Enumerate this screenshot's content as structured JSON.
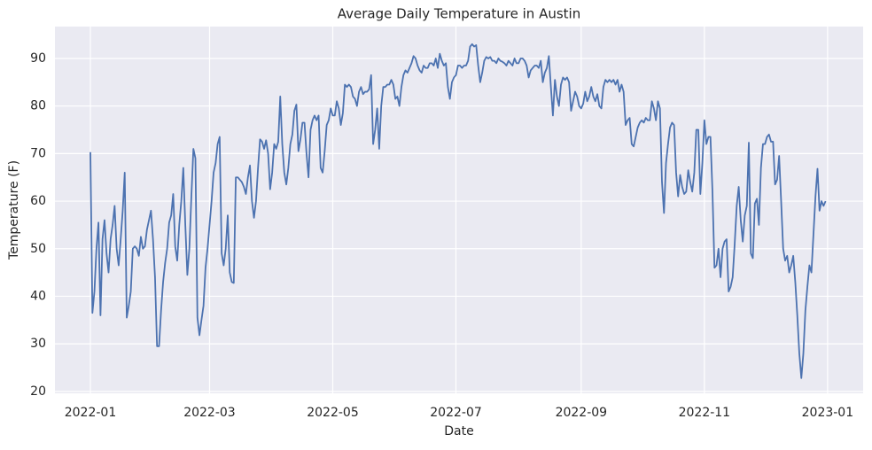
{
  "chart_data": {
    "type": "line",
    "title": "Average Daily Temperature in Austin",
    "xlabel": "Date",
    "ylabel": "Temperature (F)",
    "color": "#4c72b0",
    "grid": true,
    "values": [
      70.3,
      36.5,
      41,
      50,
      55.5,
      36,
      52,
      56,
      49,
      45,
      52,
      55,
      59,
      50,
      46.5,
      52,
      58,
      66,
      35.5,
      38,
      41,
      50,
      50.5,
      50,
      48.5,
      52.5,
      50,
      50.5,
      54,
      56,
      58,
      52,
      44,
      29.5,
      29.5,
      37,
      43,
      47,
      50,
      55.5,
      57,
      61.5,
      50.5,
      47.5,
      55,
      60,
      67,
      55,
      44.5,
      50,
      61,
      71,
      69,
      35.5,
      31.8,
      35,
      38,
      46,
      50,
      55,
      60,
      66,
      68,
      72,
      73.5,
      49,
      46.5,
      50,
      57,
      45,
      43,
      42.8,
      65,
      65,
      64.5,
      64,
      63,
      61.5,
      65,
      67.5,
      60,
      56.5,
      60,
      67,
      73,
      72.5,
      71,
      72.8,
      70,
      62.5,
      66,
      72,
      71,
      72.5,
      82,
      72,
      66,
      63.5,
      67,
      72,
      74,
      79,
      80.3,
      70.5,
      73,
      76.5,
      76.5,
      70,
      65,
      75,
      77,
      78,
      77,
      78,
      67,
      66,
      70.5,
      76,
      77,
      79.5,
      78,
      78,
      81,
      79.5,
      76,
      78.5,
      84.5,
      84,
      84.5,
      84,
      82,
      81.5,
      80,
      83,
      84,
      82.5,
      83,
      83,
      83.5,
      86.5,
      72,
      75,
      79.5,
      71,
      80,
      84,
      84,
      84.5,
      84.5,
      85.5,
      84.5,
      81.5,
      82,
      80,
      84,
      86.5,
      87.5,
      87,
      88,
      89,
      90.5,
      90,
      88.5,
      87.5,
      87,
      88.5,
      88,
      88,
      89,
      89,
      88.5,
      90,
      88,
      91,
      89.5,
      88.5,
      89,
      84,
      81.5,
      85,
      86,
      86.5,
      88.5,
      88.5,
      88,
      88.5,
      88.5,
      89.5,
      92.5,
      93,
      92.5,
      92.8,
      88.5,
      85,
      87,
      89.5,
      90.3,
      90,
      90.3,
      89.5,
      89.5,
      89,
      90,
      89.5,
      89.3,
      89,
      88.5,
      89.5,
      89,
      88.5,
      90,
      89,
      89,
      90,
      90,
      89.5,
      88.5,
      86,
      87.5,
      88,
      88.5,
      88.5,
      88,
      89.5,
      85,
      87,
      88,
      90.5,
      84,
      78,
      85.5,
      82,
      80,
      84.5,
      86,
      85.5,
      86,
      85,
      79,
      81,
      83,
      82,
      80,
      79.5,
      80.5,
      83,
      81,
      82,
      84,
      82,
      81,
      82.5,
      80,
      79.5,
      84,
      85.5,
      85,
      85.5,
      85,
      85.5,
      84.5,
      85.5,
      83,
      84.5,
      83,
      76,
      77,
      77.5,
      72,
      71.5,
      73.5,
      75.5,
      76.5,
      77,
      76.5,
      77.5,
      77,
      77,
      81,
      79.5,
      77,
      81,
      79.5,
      64,
      57.5,
      68,
      72,
      75.5,
      76.5,
      76,
      66,
      61,
      65.5,
      63,
      61.5,
      62,
      66.5,
      64,
      62,
      66,
      75,
      75,
      61.5,
      68,
      77,
      72,
      73.5,
      73.5,
      62,
      46,
      46.5,
      50,
      44,
      50,
      51.5,
      52,
      41,
      42,
      44,
      51,
      59,
      63,
      56,
      51.5,
      57,
      59,
      72.3,
      49,
      48,
      59.5,
      60.5,
      55,
      67,
      72,
      72,
      73.5,
      74,
      72.5,
      72.5,
      63.5,
      64.5,
      69.5,
      60,
      50,
      47.5,
      48.5,
      45,
      46.5,
      48.5,
      43,
      36,
      28,
      22.8,
      28,
      37,
      42,
      46.5,
      45,
      53,
      61,
      66.8,
      58,
      60,
      59,
      60
    ],
    "xlim": [
      -17.55,
      382.6
    ],
    "xticks": [
      {
        "value": 0,
        "label": "2022-01"
      },
      {
        "value": 59,
        "label": "2022-03"
      },
      {
        "value": 120,
        "label": "2022-05"
      },
      {
        "value": 181,
        "label": "2022-07"
      },
      {
        "value": 243,
        "label": "2022-09"
      },
      {
        "value": 304,
        "label": "2022-11"
      },
      {
        "value": 365,
        "label": "2023-01"
      }
    ],
    "ylim": [
      19.6,
      96.7
    ],
    "yticks": [
      20,
      30,
      40,
      50,
      60,
      70,
      80,
      90
    ]
  }
}
